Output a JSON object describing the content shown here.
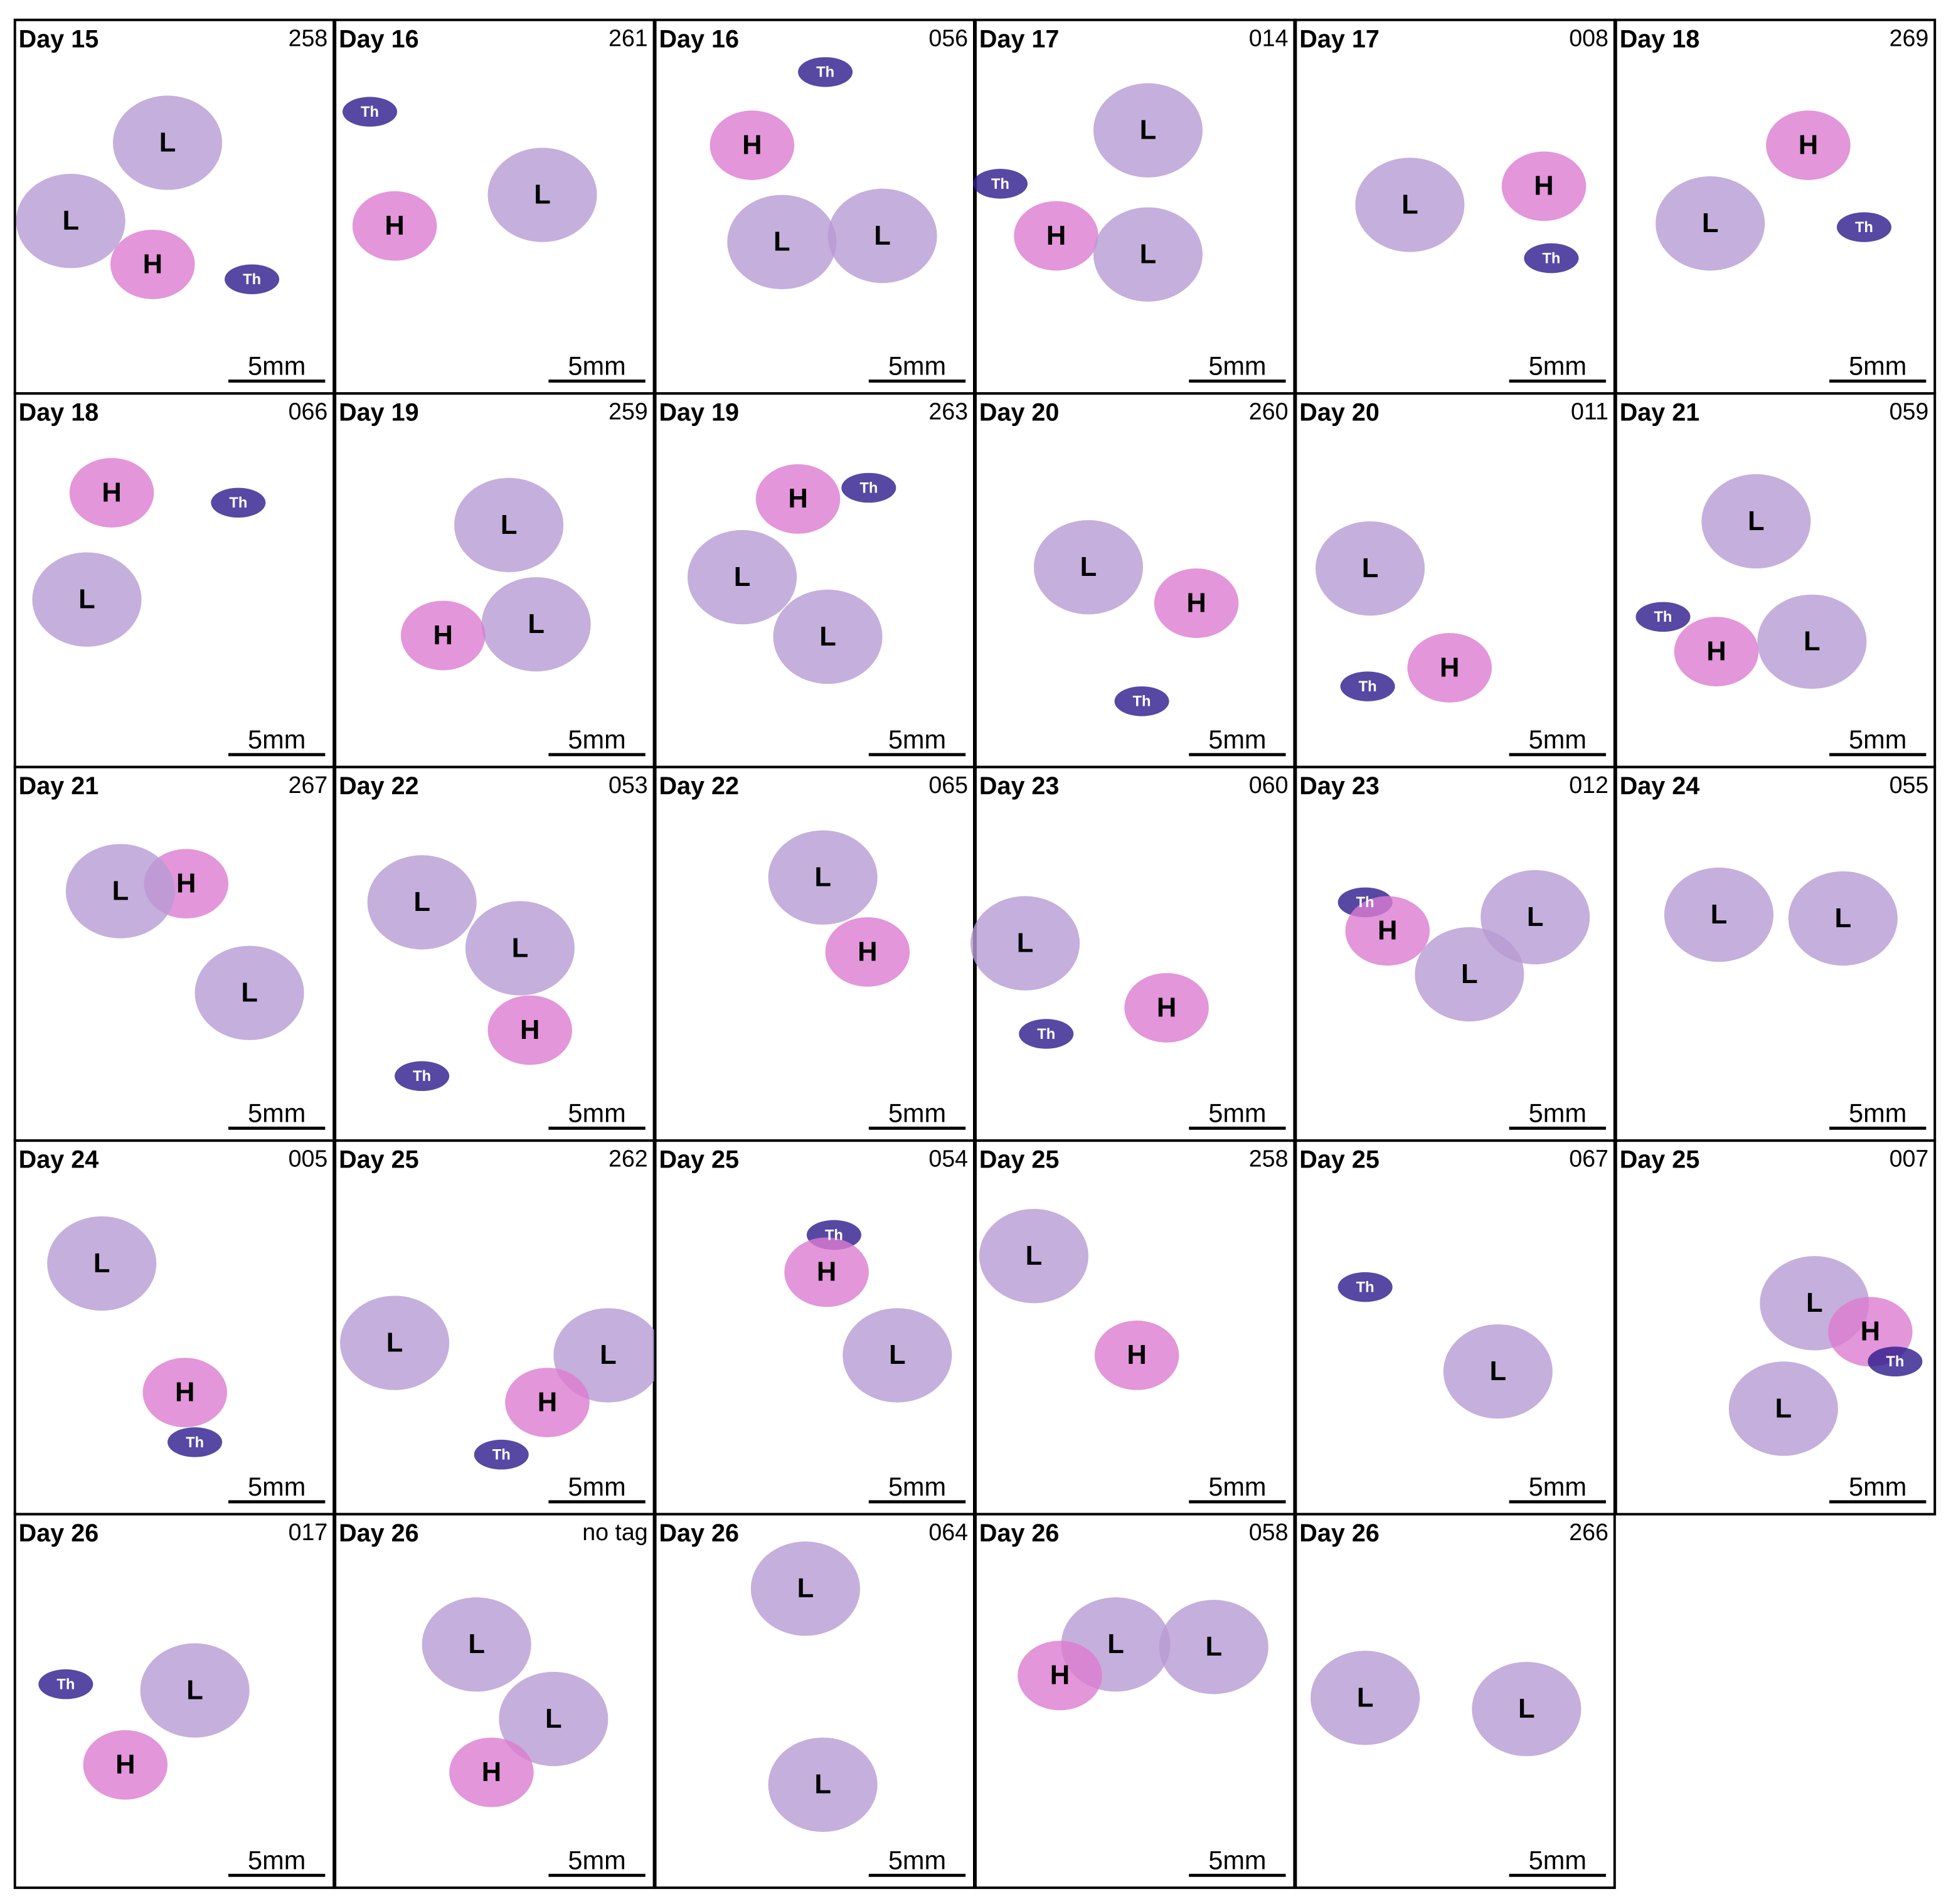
{
  "panels": [
    {
      "day": "Day 15",
      "tag": "258",
      "scale": "5mm",
      "labels": [
        "L",
        "L",
        "H",
        "Th"
      ]
    },
    {
      "day": "Day 16",
      "tag": "261",
      "scale": "5mm",
      "labels": [
        "Th",
        "H",
        "L"
      ]
    },
    {
      "day": "Day 16",
      "tag": "056",
      "scale": "5mm",
      "labels": [
        "Th",
        "H",
        "L",
        "L"
      ]
    },
    {
      "day": "Day 17",
      "tag": "014",
      "scale": "5mm",
      "labels": [
        "L",
        "Th",
        "H",
        "L"
      ]
    },
    {
      "day": "Day 17",
      "tag": "008",
      "scale": "5mm",
      "labels": [
        "L",
        "H",
        "Th"
      ]
    },
    {
      "day": "Day 18",
      "tag": "269",
      "scale": "5mm",
      "labels": [
        "H",
        "L",
        "Th"
      ]
    },
    {
      "day": "Day 18",
      "tag": "066",
      "scale": "5mm",
      "labels": [
        "H",
        "Th",
        "L"
      ]
    },
    {
      "day": "Day 19",
      "tag": "259",
      "scale": "5mm",
      "labels": [
        "L",
        "L",
        "H"
      ]
    },
    {
      "day": "Day 19",
      "tag": "263",
      "scale": "5mm",
      "labels": [
        "H",
        "Th",
        "L",
        "L"
      ]
    },
    {
      "day": "Day 20",
      "tag": "260",
      "scale": "5mm",
      "labels": [
        "L",
        "H",
        "Th"
      ]
    },
    {
      "day": "Day 20",
      "tag": "011",
      "scale": "5mm",
      "labels": [
        "L",
        "H",
        "Th"
      ]
    },
    {
      "day": "Day 21",
      "tag": "059",
      "scale": "5mm",
      "labels": [
        "L",
        "Th",
        "H",
        "L"
      ]
    },
    {
      "day": "Day 21",
      "tag": "267",
      "scale": "5mm",
      "labels": [
        "H",
        "L",
        "L"
      ]
    },
    {
      "day": "Day 22",
      "tag": "053",
      "scale": "5mm",
      "labels": [
        "L",
        "L",
        "H",
        "Th"
      ]
    },
    {
      "day": "Day 22",
      "tag": "065",
      "scale": "5mm",
      "labels": [
        "L",
        "H"
      ]
    },
    {
      "day": "Day 23",
      "tag": "060",
      "scale": "5mm",
      "labels": [
        "L",
        "H",
        "Th"
      ]
    },
    {
      "day": "Day 23",
      "tag": "012",
      "scale": "5mm",
      "labels": [
        "Th",
        "H",
        "L",
        "L"
      ]
    },
    {
      "day": "Day 24",
      "tag": "055",
      "scale": "5mm",
      "labels": [
        "L",
        "L"
      ]
    },
    {
      "day": "Day 24",
      "tag": "005",
      "scale": "5mm",
      "labels": [
        "L",
        "H",
        "Th"
      ]
    },
    {
      "day": "Day 25",
      "tag": "262",
      "scale": "5mm",
      "labels": [
        "L",
        "L",
        "H",
        "Th"
      ]
    },
    {
      "day": "Day 25",
      "tag": "054",
      "scale": "5mm",
      "labels": [
        "Th",
        "H",
        "L"
      ]
    },
    {
      "day": "Day 25",
      "tag": "258",
      "scale": "5mm",
      "labels": [
        "L",
        "H"
      ]
    },
    {
      "day": "Day 25",
      "tag": "067",
      "scale": "5mm",
      "labels": [
        "Th",
        "L"
      ]
    },
    {
      "day": "Day 25",
      "tag": "007",
      "scale": "5mm",
      "labels": [
        "L",
        "H",
        "Th",
        "L"
      ]
    },
    {
      "day": "Day 26",
      "tag": "017",
      "scale": "5mm",
      "labels": [
        "Th",
        "L",
        "H"
      ]
    },
    {
      "day": "Day 26",
      "tag": "no tag",
      "scale": "5mm",
      "labels": [
        "L",
        "L",
        "H"
      ]
    },
    {
      "day": "Day 26",
      "tag": "064",
      "scale": "5mm",
      "labels": [
        "L",
        "L"
      ]
    },
    {
      "day": "Day 26",
      "tag": "058",
      "scale": "5mm",
      "labels": [
        "L",
        "L",
        "H"
      ]
    },
    {
      "day": "Day 26",
      "tag": "266",
      "scale": "5mm",
      "labels": [
        "L",
        "L"
      ]
    }
  ]
}
